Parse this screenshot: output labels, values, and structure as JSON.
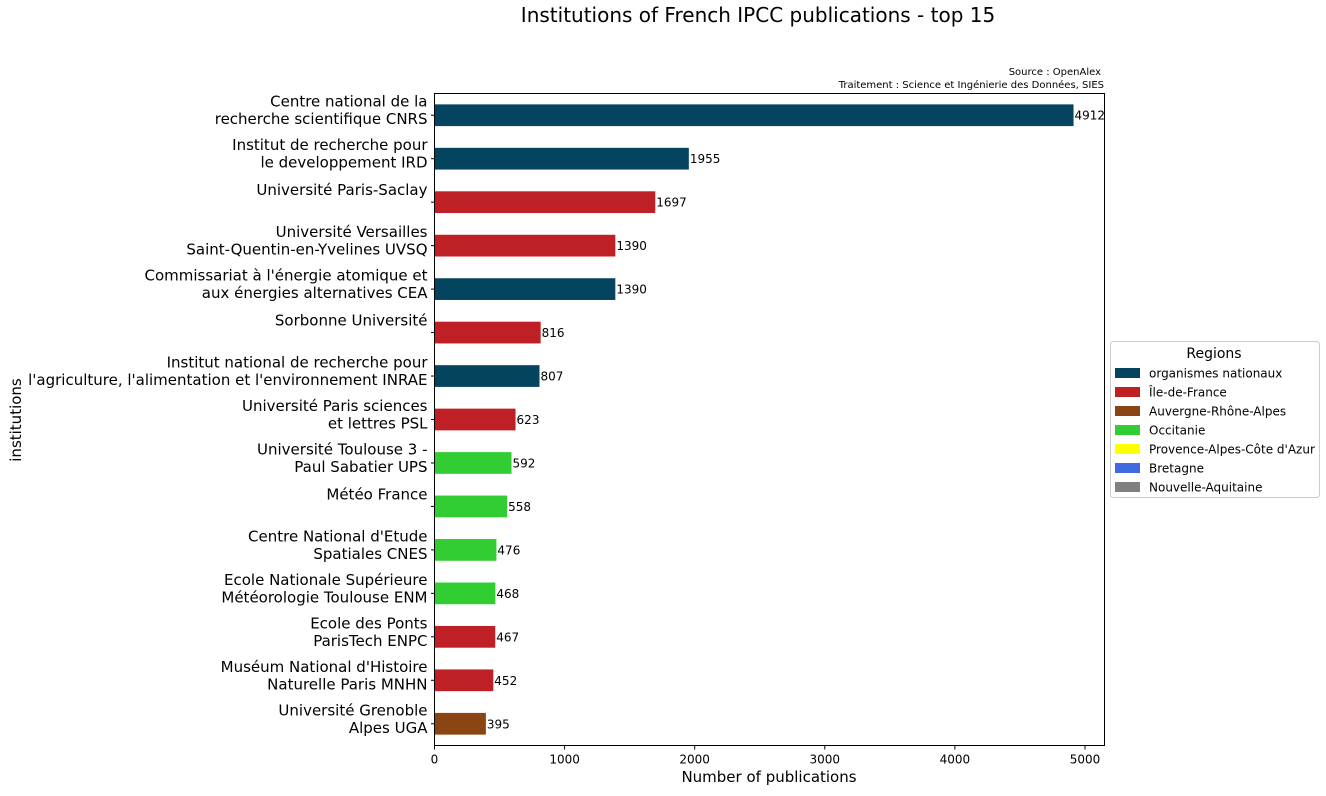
{
  "chart_data": {
    "type": "bar",
    "orientation": "horizontal",
    "title": "Institutions of French IPCC publications - top 15",
    "source_lines": [
      "Source : OpenAlex",
      "Traitement : Science et Ingénierie des Données, SIES"
    ],
    "xlabel": "Number of publications",
    "ylabel": "institutions",
    "xlim": [
      0,
      5150
    ],
    "xticks": [
      0,
      1000,
      2000,
      3000,
      4000,
      5000
    ],
    "grid": false,
    "legend": {
      "title": "Regions",
      "placement": "center-right-outside",
      "entries": [
        {
          "name": "organismes nationaux",
          "color": "#04445e"
        },
        {
          "name": "Île-de-France",
          "color": "#bf2026"
        },
        {
          "name": "Auvergne-Rhône-Alpes",
          "color": "#8b4513"
        },
        {
          "name": "Occitanie",
          "color": "#32cd32"
        },
        {
          "name": "Provence-Alpes-Côte d'Azur",
          "color": "#ffff00"
        },
        {
          "name": "Bretagne",
          "color": "#4169e1"
        },
        {
          "name": "Nouvelle-Aquitaine",
          "color": "#808080"
        }
      ]
    },
    "bars": [
      {
        "label": [
          "Centre national de la",
          "recherche scientifique CNRS"
        ],
        "value": 4912,
        "region": "organismes nationaux"
      },
      {
        "label": [
          "Institut de recherche pour",
          "le developpement IRD"
        ],
        "value": 1955,
        "region": "organismes nationaux"
      },
      {
        "label": [
          "Université Paris-Saclay"
        ],
        "value": 1697,
        "region": "Île-de-France"
      },
      {
        "label": [
          "Université Versailles",
          "Saint-Quentin-en-Yvelines UVSQ"
        ],
        "value": 1390,
        "region": "Île-de-France"
      },
      {
        "label": [
          "Commissariat à l'énergie atomique et",
          "aux énergies alternatives CEA"
        ],
        "value": 1390,
        "region": "organismes nationaux"
      },
      {
        "label": [
          "Sorbonne Université"
        ],
        "value": 816,
        "region": "Île-de-France"
      },
      {
        "label": [
          "Institut national de recherche pour",
          "l'agriculture, l'alimentation et l'environnement INRAE"
        ],
        "value": 807,
        "region": "organismes nationaux"
      },
      {
        "label": [
          "Université Paris sciences",
          "et lettres PSL"
        ],
        "value": 623,
        "region": "Île-de-France"
      },
      {
        "label": [
          "Université Toulouse 3 -",
          "Paul Sabatier UPS"
        ],
        "value": 592,
        "region": "Occitanie"
      },
      {
        "label": [
          "Météo France"
        ],
        "value": 558,
        "region": "Occitanie"
      },
      {
        "label": [
          "Centre National d'Etude",
          "Spatiales CNES"
        ],
        "value": 476,
        "region": "Occitanie"
      },
      {
        "label": [
          "Ecole Nationale Supérieure",
          "Météorologie Toulouse ENM"
        ],
        "value": 468,
        "region": "Occitanie"
      },
      {
        "label": [
          "Ecole des Ponts",
          "ParisTech ENPC"
        ],
        "value": 467,
        "region": "Île-de-France"
      },
      {
        "label": [
          "Muséum National d'Histoire",
          "Naturelle Paris MNHN"
        ],
        "value": 452,
        "region": "Île-de-France"
      },
      {
        "label": [
          "Université Grenoble",
          "Alpes UGA"
        ],
        "value": 395,
        "region": "Auvergne-Rhône-Alpes"
      }
    ]
  }
}
